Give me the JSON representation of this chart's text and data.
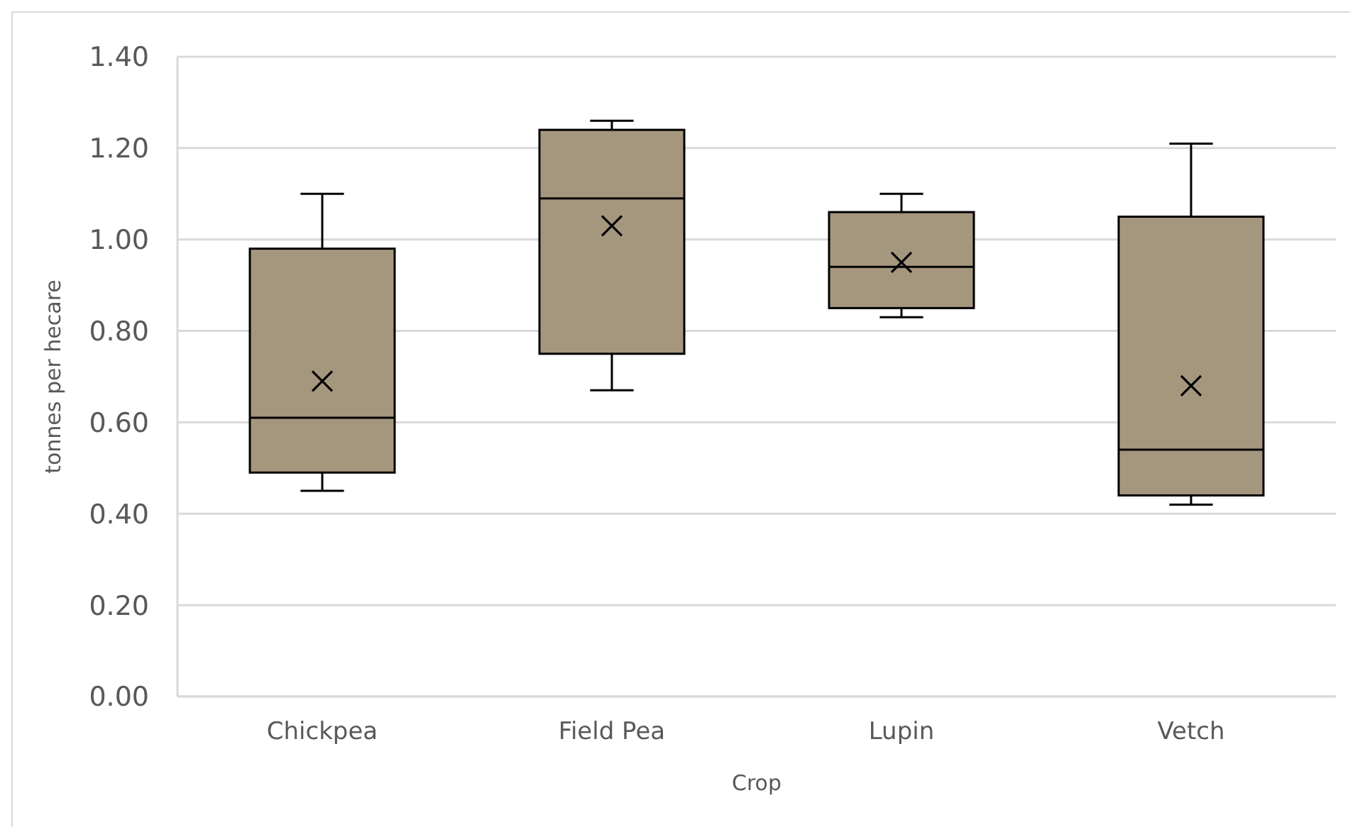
{
  "chart_data": {
    "type": "box",
    "xlabel": "Crop",
    "ylabel": "tonnes per hecare",
    "categories": [
      "Chickpea",
      "Field Pea",
      "Lupin",
      "Vetch"
    ],
    "color": "#a5967e",
    "boxes": [
      {
        "low": 0.45,
        "q1": 0.49,
        "median": 0.61,
        "q3": 0.98,
        "high": 1.1,
        "mean": 0.69
      },
      {
        "low": 0.67,
        "q1": 0.75,
        "median": 1.09,
        "q3": 1.24,
        "high": 1.26,
        "mean": 1.03
      },
      {
        "low": 0.83,
        "q1": 0.85,
        "median": 0.94,
        "q3": 1.06,
        "high": 1.1,
        "mean": 0.95
      },
      {
        "low": 0.42,
        "q1": 0.44,
        "median": 0.54,
        "q3": 1.05,
        "high": 1.21,
        "mean": 0.68
      }
    ],
    "ylim": [
      0,
      1.4
    ],
    "yticks": [
      {
        "value": 0,
        "label": "0.00"
      },
      {
        "value": 0.2,
        "label": "0.20"
      },
      {
        "value": 0.4,
        "label": "0.40"
      },
      {
        "value": 0.6,
        "label": "0.60"
      },
      {
        "value": 0.8,
        "label": "0.80"
      },
      {
        "value": 1.0,
        "label": "1.00"
      },
      {
        "value": 1.2,
        "label": "1.20"
      },
      {
        "value": 1.4,
        "label": "1.40"
      }
    ],
    "grid": "y",
    "legend": false,
    "marker": "cross"
  }
}
